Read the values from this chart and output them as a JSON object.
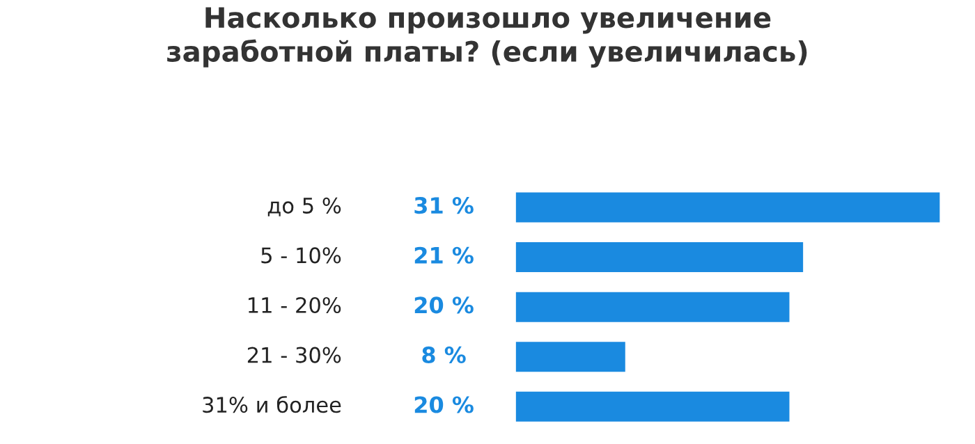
{
  "chart_data": {
    "type": "bar",
    "orientation": "horizontal",
    "title": "Насколько произошло увеличение\nзаработной платы? (если увеличилась)",
    "categories": [
      "до 5 %",
      "5 - 10%",
      "11 - 20%",
      "21 - 30%",
      "31% и более"
    ],
    "values": [
      31,
      21,
      20,
      8,
      20
    ],
    "value_labels": [
      "31 %",
      "21 %",
      "20 %",
      "8 %",
      "20 %"
    ],
    "color": "#1a8ae0"
  }
}
